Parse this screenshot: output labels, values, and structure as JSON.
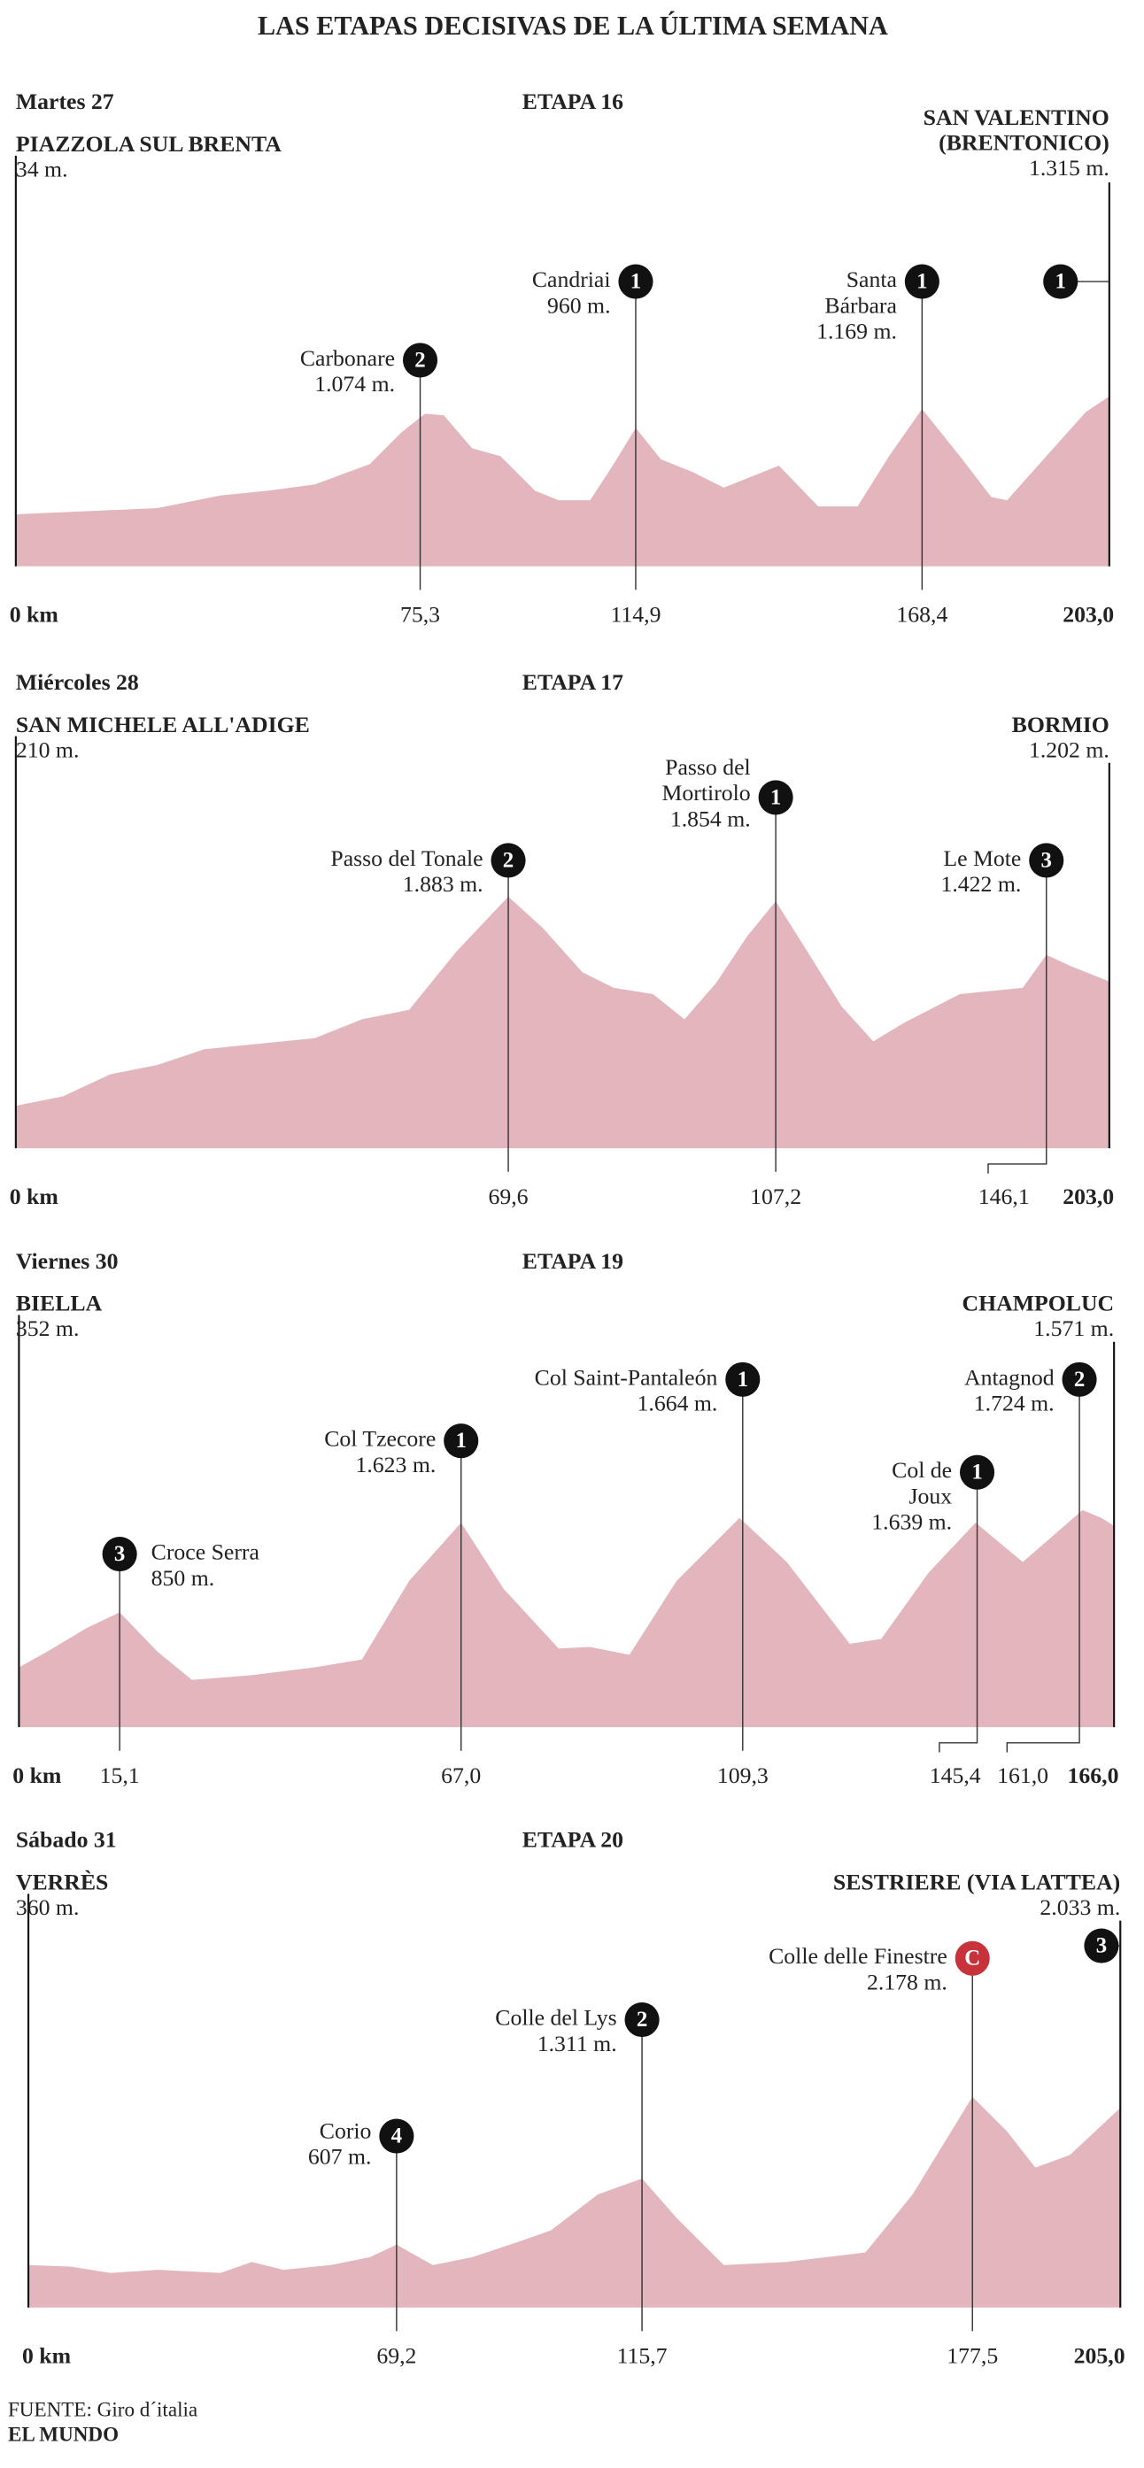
{
  "title": "LAS ETAPAS DECISIVAS DE LA ÚLTIMA SEMANA",
  "stages": [
    {
      "date": "Martes 27",
      "stage": "ETAPA 16",
      "start": {
        "name": [
          "PIAZZOLA SUL BRENTA"
        ],
        "altitude": "34 m."
      },
      "finish": {
        "name": [
          "SAN VALENTINO",
          "(BRENTONICO)"
        ],
        "altitude": "1.315 m.",
        "category": "1"
      },
      "start_km": "0 km",
      "end_km": "203,0",
      "climbs": [
        {
          "name": [
            "Carbonare"
          ],
          "altitude": "1.074 m.",
          "category": "2",
          "km": "75,3"
        },
        {
          "name": [
            "Candriai"
          ],
          "altitude": "960 m.",
          "category": "1",
          "km": "114,9"
        },
        {
          "name": [
            "Santa",
            "Bárbara"
          ],
          "altitude": "1.169 m.",
          "category": "1",
          "km": "168,4"
        }
      ]
    },
    {
      "date": "Miércoles 28",
      "stage": "ETAPA 17",
      "start": {
        "name": [
          "SAN MICHELE ALL'ADIGE"
        ],
        "altitude": "210 m."
      },
      "finish": {
        "name": [
          "BORMIO"
        ],
        "altitude": "1.202 m."
      },
      "start_km": "0 km",
      "end_km": "203,0",
      "climbs": [
        {
          "name": [
            "Passo del Tonale"
          ],
          "altitude": "1.883 m.",
          "category": "2",
          "km": "69,6"
        },
        {
          "name": [
            "Passo del",
            "Mortirolo"
          ],
          "altitude": "1.854 m.",
          "category": "1",
          "km": "107,2"
        },
        {
          "name": [
            "Le Mote"
          ],
          "altitude": "1.422 m.",
          "category": "3",
          "km": "146,1"
        }
      ]
    },
    {
      "date": "Viernes 30",
      "stage": "ETAPA 19",
      "start": {
        "name": [
          "BIELLA"
        ],
        "altitude": "352 m."
      },
      "finish": {
        "name": [
          "CHAMPOLUC"
        ],
        "altitude": "1.571 m."
      },
      "start_km": "0 km",
      "end_km": "166,0",
      "climbs": [
        {
          "name": [
            "Croce Serra"
          ],
          "altitude": "850 m.",
          "category": "3",
          "km": "15,1"
        },
        {
          "name": [
            "Col Tzecore"
          ],
          "altitude": "1.623 m.",
          "category": "1",
          "km": "67,0"
        },
        {
          "name": [
            "Col Saint-Pantaleón"
          ],
          "altitude": "1.664 m.",
          "category": "1",
          "km": "109,3"
        },
        {
          "name": [
            "Col de",
            "Joux"
          ],
          "altitude": "1.639 m.",
          "category": "1",
          "km": "145,4"
        },
        {
          "name": [
            "Antagnod"
          ],
          "altitude": "1.724 m.",
          "category": "2",
          "km": "161,0"
        }
      ]
    },
    {
      "date": "Sábado 31",
      "stage": "ETAPA 20",
      "start": {
        "name": [
          "VERRÈS"
        ],
        "altitude": "360 m."
      },
      "finish": {
        "name": [
          "SESTRIERE (VIA LATTEA)"
        ],
        "altitude": "2.033 m.",
        "category": "3"
      },
      "start_km": "0 km",
      "end_km": "205,0",
      "climbs": [
        {
          "name": [
            "Corio"
          ],
          "altitude": "607 m.",
          "category": "4",
          "km": "69,2"
        },
        {
          "name": [
            "Colle del Lys"
          ],
          "altitude": "1.311 m.",
          "category": "2",
          "km": "115,7"
        },
        {
          "name": [
            "Colle delle Finestre"
          ],
          "altitude": "2.178 m.",
          "category": "C",
          "km": "177,5"
        }
      ]
    }
  ],
  "source": "FUENTE: Giro d´italia",
  "publisher": "EL MUNDO"
}
